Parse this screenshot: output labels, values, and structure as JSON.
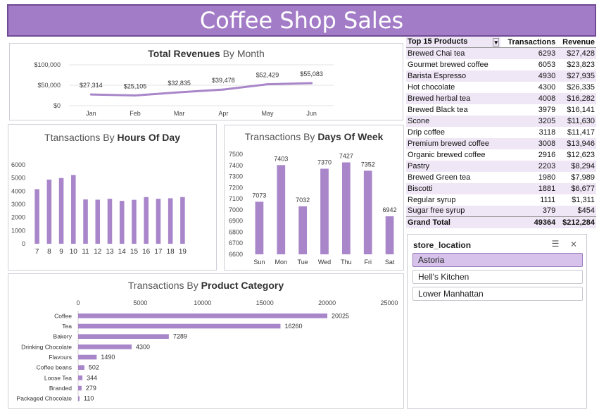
{
  "dashboard": {
    "title": "Coffee Shop Sales"
  },
  "colors": {
    "accent": "#a37cc7",
    "bar": "#a886c9",
    "line": "#a886c9"
  },
  "chart_data": [
    {
      "id": "revenue",
      "type": "line",
      "title_prefix": "Total Revenues",
      "title_suffix": " By Month",
      "categories": [
        "Jan",
        "Feb",
        "Mar",
        "Apr",
        "May",
        "Jun"
      ],
      "values": [
        27314,
        25105,
        32835,
        39478,
        52429,
        55083
      ],
      "labels": [
        "$27,314",
        "$25,105",
        "$32,835",
        "$39,478",
        "$52,429",
        "$55,083"
      ],
      "yticks": [
        "$100,000",
        "$50,000",
        "$0"
      ],
      "ylim": [
        0,
        100000
      ],
      "grid": true
    },
    {
      "id": "hours",
      "type": "bar",
      "title_prefix": "Ttansactions By ",
      "title_suffix": "Hours Of Day",
      "categories": [
        "7",
        "8",
        "9",
        "10",
        "11",
        "12",
        "13",
        "14",
        "15",
        "16",
        "17",
        "18",
        "19"
      ],
      "values": [
        4150,
        4880,
        5000,
        5230,
        3370,
        3350,
        3420,
        3260,
        3340,
        3550,
        3420,
        3460,
        3550
      ],
      "yticks": [
        "6000",
        "5000",
        "4000",
        "3000",
        "2000",
        "1000",
        "0"
      ],
      "ylim": [
        0,
        6000
      ],
      "grid": false
    },
    {
      "id": "days",
      "type": "bar",
      "title_prefix": "Transactions By ",
      "title_suffix": "Days Of Week",
      "categories": [
        "Sun",
        "Mon",
        "Tue",
        "Wed",
        "Thu",
        "Fri",
        "Sat"
      ],
      "values": [
        7073,
        7403,
        7032,
        7370,
        7427,
        7352,
        6942
      ],
      "labels": [
        "7073",
        "7403",
        "7032",
        "7370",
        "7427",
        "7352",
        "6942"
      ],
      "yticks": [
        "7500",
        "7400",
        "7300",
        "7200",
        "7100",
        "7000",
        "6900",
        "6800",
        "6700",
        "6600"
      ],
      "ylim": [
        6600,
        7500
      ],
      "grid": false
    },
    {
      "id": "category",
      "type": "bar",
      "orientation": "horizontal",
      "title_prefix": "Transactions By ",
      "title_suffix": "Product Category",
      "categories": [
        "Coffee",
        "Tea",
        "Bakery",
        "Drinking Chocolate",
        "Flavours",
        "Coffee beans",
        "Loose Tea",
        "Branded",
        "Packaged Chocolate"
      ],
      "values": [
        20025,
        16260,
        7289,
        4300,
        1490,
        502,
        344,
        279,
        110
      ],
      "labels": [
        "20025",
        "16260",
        "7289",
        "4300",
        "1490",
        "502",
        "344",
        "279",
        "110"
      ],
      "xticks": [
        "0",
        "5000",
        "10000",
        "15000",
        "20000",
        "25000"
      ],
      "xlim": [
        0,
        25000
      ],
      "grid": false
    }
  ],
  "pivot": {
    "headers": [
      "Top 15 Products",
      "Transactions",
      "Revenue"
    ],
    "rows": [
      [
        "Brewed Chai tea",
        "6293",
        "$27,428"
      ],
      [
        "Gourmet brewed coffee",
        "6053",
        "$23,823"
      ],
      [
        "Barista Espresso",
        "4930",
        "$27,935"
      ],
      [
        "Hot chocolate",
        "4300",
        "$26,335"
      ],
      [
        "Brewed herbal tea",
        "4008",
        "$16,282"
      ],
      [
        "Brewed Black tea",
        "3979",
        "$16,141"
      ],
      [
        "Scone",
        "3205",
        "$11,630"
      ],
      [
        "Drip coffee",
        "3118",
        "$11,417"
      ],
      [
        "Premium brewed coffee",
        "3008",
        "$13,946"
      ],
      [
        "Organic brewed coffee",
        "2916",
        "$12,623"
      ],
      [
        "Pastry",
        "2203",
        "$8,294"
      ],
      [
        "Brewed Green tea",
        "1980",
        "$7,989"
      ],
      [
        "Biscotti",
        "1881",
        "$6,677"
      ],
      [
        "Regular syrup",
        "1111",
        "$1,311"
      ],
      [
        "Sugar free syrup",
        "379",
        "$454"
      ]
    ],
    "total": [
      "Grand Total",
      "49364",
      "$212,284"
    ]
  },
  "slicer": {
    "title": "store_location",
    "items": [
      "Astoria",
      "Hell's Kitchen",
      "Lower Manhattan"
    ],
    "selected": "Astoria"
  }
}
